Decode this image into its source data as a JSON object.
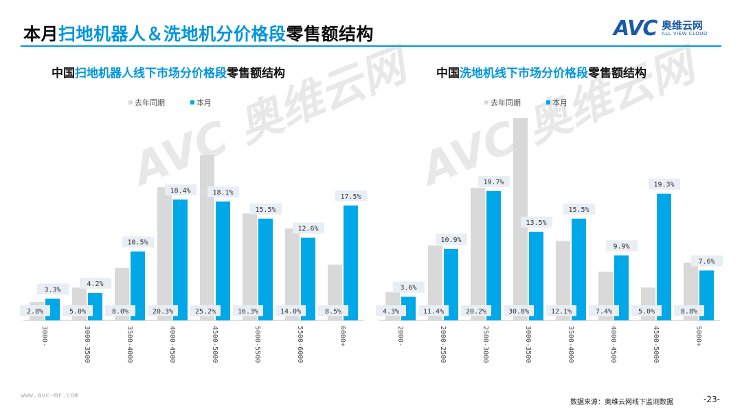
{
  "header": {
    "title_parts": [
      "本月",
      "扫地机器人＆洗地机分价格段",
      "零售额结构"
    ],
    "logo_text": "AVC",
    "logo_cn": "奥维云网",
    "logo_en": "ALL VIEW CLOUD"
  },
  "colors": {
    "accent": "#0096dc",
    "prev_year": "#d9d9d9",
    "current": "#00a8e8",
    "label_bg": "#e8eef4"
  },
  "chart_data": [
    {
      "type": "bar",
      "title_parts": [
        "中国",
        "扫地机器人线下市场分价格段",
        "零售额结构"
      ],
      "legend": [
        "去年同期",
        "本月"
      ],
      "categories": [
        "3000-",
        "3000-3500",
        "3500-4000",
        "4000-4500",
        "4500-5000",
        "5000-5500",
        "5500-6000",
        "6000+"
      ],
      "series": [
        {
          "name": "去年同期",
          "values": [
            2.8,
            5.0,
            8.0,
            20.3,
            25.2,
            16.3,
            14.0,
            8.5
          ],
          "labels": [
            "2.8%",
            "5.0%",
            "8.0%",
            "20.3%",
            "25.2%",
            "16.3%",
            "14.0%",
            "8.5%"
          ]
        },
        {
          "name": "本月",
          "values": [
            3.3,
            4.2,
            10.5,
            18.4,
            18.1,
            15.5,
            12.6,
            17.5
          ],
          "labels": [
            "3.3%",
            "4.2%",
            "10.5%",
            "18.4%",
            "18.1%",
            "15.5%",
            "12.6%",
            "17.5%"
          ]
        }
      ]
    },
    {
      "type": "bar",
      "title_parts": [
        "中国",
        "洗地机线下市场分价格段",
        "零售额结构"
      ],
      "legend": [
        "去年同期",
        "本月"
      ],
      "categories": [
        "2000-",
        "2000-2500",
        "2500-3000",
        "3000-3500",
        "3500-4000",
        "4000-4500",
        "4500-5000",
        "5000+"
      ],
      "series": [
        {
          "name": "去年同期",
          "values": [
            4.3,
            11.4,
            20.2,
            30.8,
            12.1,
            7.4,
            5.0,
            8.8
          ],
          "labels": [
            "4.3%",
            "11.4%",
            "20.2%",
            "30.8%",
            "12.1%",
            "7.4%",
            "5.0%",
            "8.8%"
          ]
        },
        {
          "name": "本月",
          "values": [
            3.6,
            10.9,
            19.7,
            13.5,
            15.5,
            9.9,
            19.3,
            7.6
          ],
          "labels": [
            "3.6%",
            "10.9%",
            "19.7%",
            "13.5%",
            "15.5%",
            "9.9%",
            "19.3%",
            "7.6%"
          ]
        }
      ]
    }
  ],
  "footer": {
    "website": "www.avc-mr.com",
    "source": "数据来源：奥维云网线下监测数据",
    "page": "-23-"
  }
}
